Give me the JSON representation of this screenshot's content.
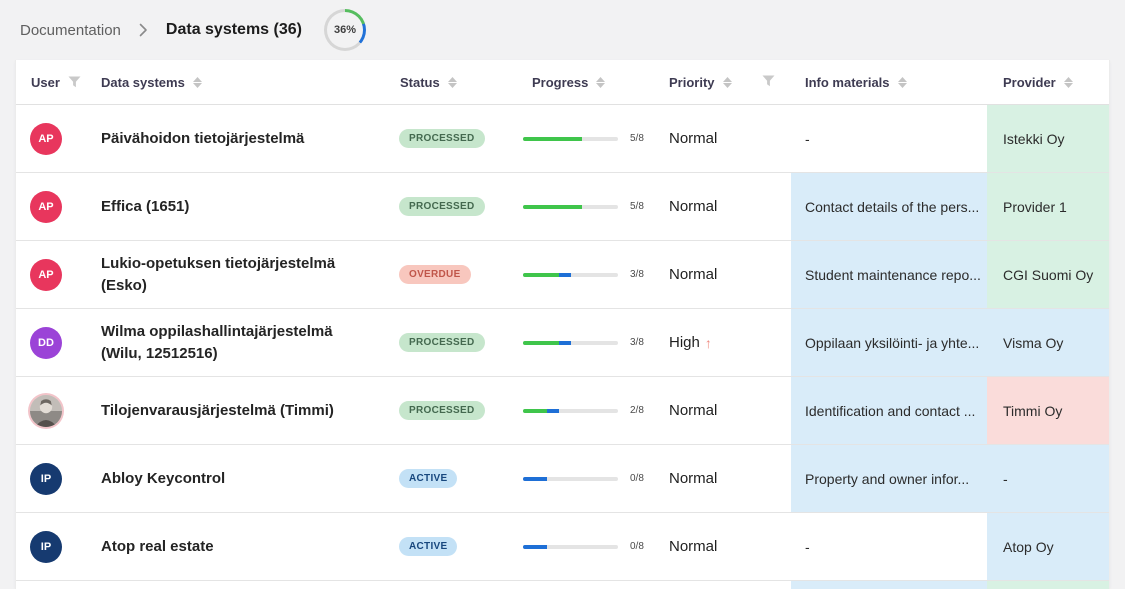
{
  "breadcrumb": {
    "parent": "Documentation",
    "current": "Data systems (36)",
    "completion": "36%"
  },
  "colors": {
    "progress_done_green": "#3fc54b",
    "progress_active_blue": "#1e6fd6",
    "ring_green": "#56bd5f",
    "ring_blue": "#2272d8",
    "cell_highlight_blue": "#d9ecf9",
    "cell_highlight_green": "#d8f1e3",
    "cell_highlight_pink": "#fadcda"
  },
  "header": {
    "columns": [
      {
        "label": "User",
        "icons": [
          "filter-icon"
        ]
      },
      {
        "label": "Data systems",
        "icons": [
          "sort-icon"
        ]
      },
      {
        "label": "Status",
        "icons": [
          "sort-icon"
        ]
      },
      {
        "label": "Progress",
        "icons": [
          "sort-icon"
        ]
      },
      {
        "label": "Priority",
        "icons": [
          "sort-icon",
          "filter-icon"
        ]
      },
      {
        "label": "Info materials",
        "icons": [
          "sort-icon"
        ]
      },
      {
        "label": "Provider",
        "icons": [
          "sort-icon"
        ]
      }
    ]
  },
  "rows": [
    {
      "avatar": {
        "type": "initials",
        "text": "AP",
        "color": "#e8365d"
      },
      "name": "Päivähoidon tietojärjestelmä",
      "status": {
        "label": "PROCESSED",
        "kind": "processed"
      },
      "progress": {
        "done": 5,
        "active": 0,
        "total": 8,
        "label": "5/8"
      },
      "priority": {
        "label": "Normal",
        "arrow": ""
      },
      "info": {
        "text": "-",
        "bg": "none"
      },
      "provider": {
        "text": "Istekki Oy",
        "bg": "green"
      }
    },
    {
      "avatar": {
        "type": "initials",
        "text": "AP",
        "color": "#e8365d"
      },
      "name": "Effica (1651)",
      "status": {
        "label": "PROCESSED",
        "kind": "processed"
      },
      "progress": {
        "done": 5,
        "active": 0,
        "total": 8,
        "label": "5/8"
      },
      "priority": {
        "label": "Normal",
        "arrow": ""
      },
      "info": {
        "text": "Contact details of the pers...",
        "bg": "blue"
      },
      "provider": {
        "text": "Provider 1",
        "bg": "green"
      }
    },
    {
      "avatar": {
        "type": "initials",
        "text": "AP",
        "color": "#e8365d"
      },
      "name": "Lukio-opetuksen tietojärjestelmä (Esko)",
      "status": {
        "label": "OVERDUE",
        "kind": "overdue"
      },
      "progress": {
        "done": 3,
        "active": 1,
        "total": 8,
        "label": "3/8"
      },
      "priority": {
        "label": "Normal",
        "arrow": ""
      },
      "info": {
        "text": "Student maintenance repo...",
        "bg": "blue"
      },
      "provider": {
        "text": "CGI Suomi Oy",
        "bg": "green"
      }
    },
    {
      "avatar": {
        "type": "initials",
        "text": "DD",
        "color": "#9b43d7"
      },
      "name": "Wilma oppilashallintajärjestelmä (Wilu, 12512516)",
      "status": {
        "label": "PROCESSED",
        "kind": "processed"
      },
      "progress": {
        "done": 3,
        "active": 1,
        "total": 8,
        "label": "3/8"
      },
      "priority": {
        "label": "High",
        "arrow": "up"
      },
      "info": {
        "text": "Oppilaan yksilöinti- ja yhte...",
        "bg": "blue"
      },
      "provider": {
        "text": "Visma Oy",
        "bg": "blue"
      }
    },
    {
      "avatar": {
        "type": "photo",
        "text": "",
        "color": "#f2c4c9"
      },
      "name": "Tilojenvarausjärjestelmä (Timmi)",
      "status": {
        "label": "PROCESSED",
        "kind": "processed"
      },
      "progress": {
        "done": 2,
        "active": 1,
        "total": 8,
        "label": "2/8"
      },
      "priority": {
        "label": "Normal",
        "arrow": ""
      },
      "info": {
        "text": "Identification and contact ...",
        "bg": "blue"
      },
      "provider": {
        "text": "Timmi Oy",
        "bg": "pink"
      }
    },
    {
      "avatar": {
        "type": "initials",
        "text": "IP",
        "color": "#163a70"
      },
      "name": "Abloy Keycontrol",
      "status": {
        "label": "ACTIVE",
        "kind": "active"
      },
      "progress": {
        "done": 0,
        "active": 2,
        "total": 8,
        "label": "0/8"
      },
      "priority": {
        "label": "Normal",
        "arrow": ""
      },
      "info": {
        "text": "Property and owner infor...",
        "bg": "blue"
      },
      "provider": {
        "text": "-",
        "bg": "blue"
      }
    },
    {
      "avatar": {
        "type": "initials",
        "text": "IP",
        "color": "#163a70"
      },
      "name": "Atop real estate",
      "status": {
        "label": "ACTIVE",
        "kind": "active"
      },
      "progress": {
        "done": 0,
        "active": 2,
        "total": 8,
        "label": "0/8"
      },
      "priority": {
        "label": "Normal",
        "arrow": ""
      },
      "info": {
        "text": "-",
        "bg": "none"
      },
      "provider": {
        "text": "Atop Oy",
        "bg": "blue"
      }
    }
  ],
  "next_row_peek": {
    "info_bg": "blue",
    "provider_bg": "green"
  }
}
